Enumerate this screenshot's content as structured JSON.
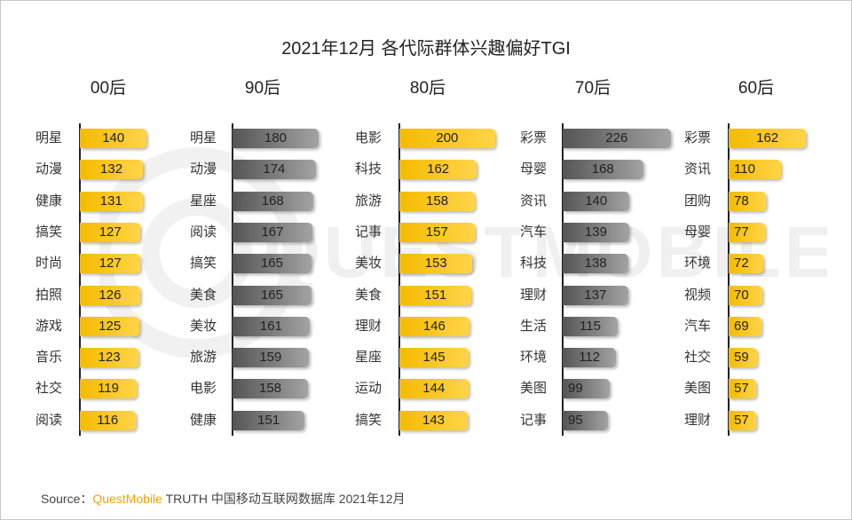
{
  "title": "2021年12月 各代际群体兴趣偏好TGI",
  "watermark": "QUESTMOBILE",
  "source": {
    "prefix": "Source：",
    "brand": "QuestMobile",
    "rest": "TRUTH 中国移动互联网数据库 2021年12月"
  },
  "colors": {
    "highlight": "#f5bb00",
    "gray": "#555555"
  },
  "chart_data": [
    {
      "type": "bar",
      "orientation": "horizontal",
      "group": "00后",
      "style": "highlight",
      "categories": [
        "明星",
        "动漫",
        "健康",
        "搞笑",
        "时尚",
        "拍照",
        "游戏",
        "音乐",
        "社交",
        "阅读"
      ],
      "values": [
        140,
        132,
        131,
        127,
        127,
        126,
        125,
        123,
        119,
        116
      ],
      "xlim": [
        0,
        230
      ]
    },
    {
      "type": "bar",
      "orientation": "horizontal",
      "group": "90后",
      "style": "gray",
      "categories": [
        "明星",
        "动漫",
        "星座",
        "阅读",
        "搞笑",
        "美食",
        "美妆",
        "旅游",
        "电影",
        "健康"
      ],
      "values": [
        180,
        174,
        168,
        167,
        165,
        165,
        161,
        159,
        158,
        151
      ],
      "xlim": [
        0,
        230
      ]
    },
    {
      "type": "bar",
      "orientation": "horizontal",
      "group": "80后",
      "style": "highlight",
      "categories": [
        "电影",
        "科技",
        "旅游",
        "记事",
        "美妆",
        "美食",
        "理财",
        "星座",
        "运动",
        "搞笑"
      ],
      "values": [
        200,
        162,
        158,
        157,
        153,
        151,
        146,
        145,
        144,
        143
      ],
      "xlim": [
        0,
        230
      ]
    },
    {
      "type": "bar",
      "orientation": "horizontal",
      "group": "70后",
      "style": "gray",
      "categories": [
        "彩票",
        "母婴",
        "资讯",
        "汽车",
        "科技",
        "理财",
        "生活",
        "环境",
        "美图",
        "记事"
      ],
      "values": [
        226,
        168,
        140,
        139,
        138,
        137,
        115,
        112,
        99,
        95
      ],
      "xlim": [
        0,
        230
      ]
    },
    {
      "type": "bar",
      "orientation": "horizontal",
      "group": "60后",
      "style": "highlight",
      "categories": [
        "彩票",
        "资讯",
        "团购",
        "母婴",
        "环境",
        "视频",
        "汽车",
        "社交",
        "美图",
        "理财"
      ],
      "values": [
        162,
        110,
        78,
        77,
        72,
        70,
        69,
        59,
        57,
        57
      ],
      "xlim": [
        0,
        230
      ]
    }
  ]
}
